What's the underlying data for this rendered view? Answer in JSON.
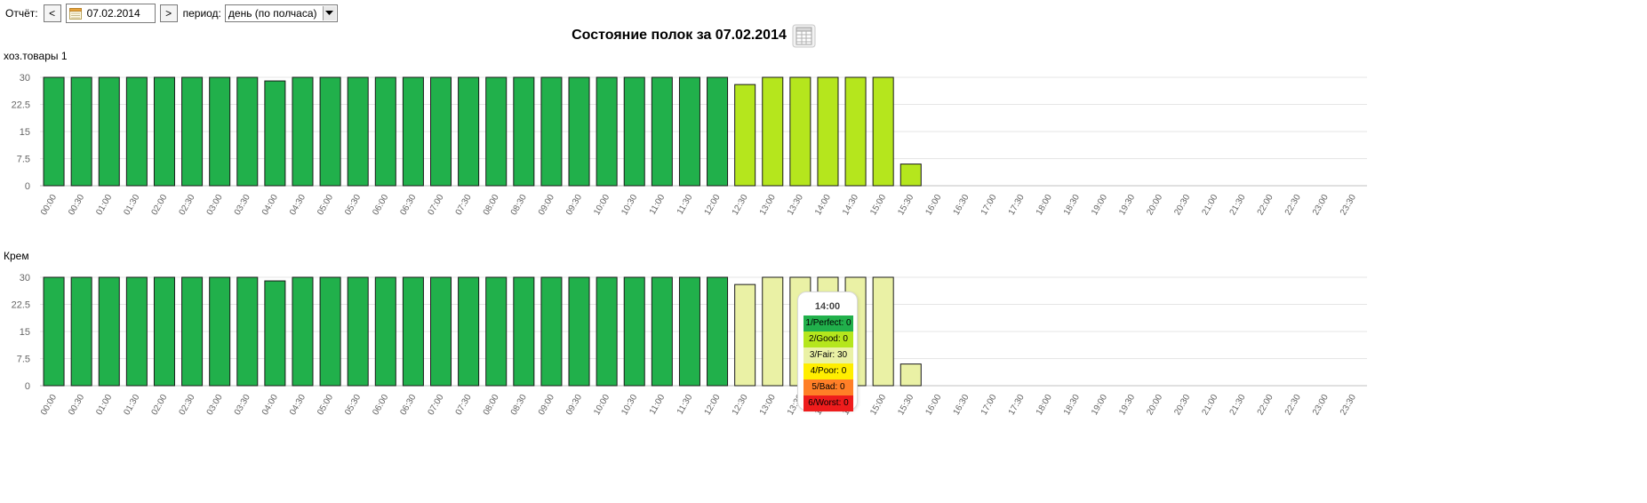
{
  "toolbar": {
    "report_label": "Отчёт:",
    "prev_label": "<",
    "date_value": "07.02.2014",
    "next_label": ">",
    "period_label": "период:",
    "period_selected": "день (по полчаса)",
    "icons": {
      "calendar": "calendar-icon",
      "dropdown": "chevron-down-icon"
    }
  },
  "report": {
    "title": "Состояние полок за 07.02.2014",
    "table_icon": "table-icon"
  },
  "colors": {
    "perfect": "#21b04b",
    "good": "#b5e61d",
    "fair": "#eaf1a5",
    "poor": "#ffee00",
    "bad": "#ff7f27",
    "worst": "#ee1c1c",
    "gridline": "#e6e6e6",
    "tick_text": "#666666"
  },
  "chart_data": [
    {
      "type": "bar",
      "title": "хоз.товары 1",
      "xlabel": "",
      "ylabel": "",
      "ylim": [
        0,
        30
      ],
      "yticks": [
        "0",
        "7.5",
        "15",
        "22.5",
        "30"
      ],
      "grid": true,
      "categories": [
        "00:00",
        "00:30",
        "01:00",
        "01:30",
        "02:00",
        "02:30",
        "03:00",
        "03:30",
        "04:00",
        "04:30",
        "05:00",
        "05:30",
        "06:00",
        "06:30",
        "07:00",
        "07:30",
        "08:00",
        "08:30",
        "09:00",
        "09:30",
        "10:00",
        "10:30",
        "11:00",
        "11:30",
        "12:00",
        "12:30",
        "13:00",
        "13:30",
        "14:00",
        "14:30",
        "15:00",
        "15:30",
        "16:00",
        "16:30",
        "17:00",
        "17:30",
        "18:00",
        "18:30",
        "19:00",
        "19:30",
        "20:00",
        "20:30",
        "21:00",
        "21:30",
        "22:00",
        "22:30",
        "23:00",
        "23:30"
      ],
      "values": [
        30,
        30,
        30,
        30,
        30,
        30,
        30,
        30,
        29,
        30,
        30,
        30,
        30,
        30,
        30,
        30,
        30,
        30,
        30,
        30,
        30,
        30,
        30,
        30,
        30,
        28,
        30,
        30,
        30,
        30,
        30,
        6,
        0,
        0,
        0,
        0,
        0,
        0,
        0,
        0,
        0,
        0,
        0,
        0,
        0,
        0,
        0,
        0
      ],
      "status": [
        "perfect",
        "perfect",
        "perfect",
        "perfect",
        "perfect",
        "perfect",
        "perfect",
        "perfect",
        "perfect",
        "perfect",
        "perfect",
        "perfect",
        "perfect",
        "perfect",
        "perfect",
        "perfect",
        "perfect",
        "perfect",
        "perfect",
        "perfect",
        "perfect",
        "perfect",
        "perfect",
        "perfect",
        "perfect",
        "good",
        "good",
        "good",
        "good",
        "good",
        "good",
        "good",
        null,
        null,
        null,
        null,
        null,
        null,
        null,
        null,
        null,
        null,
        null,
        null,
        null,
        null,
        null,
        null
      ]
    },
    {
      "type": "bar",
      "title": "Крем",
      "xlabel": "",
      "ylabel": "",
      "ylim": [
        0,
        30
      ],
      "yticks": [
        "0",
        "7.5",
        "15",
        "22.5",
        "30"
      ],
      "grid": true,
      "categories": [
        "00:00",
        "00:30",
        "01:00",
        "01:30",
        "02:00",
        "02:30",
        "03:00",
        "03:30",
        "04:00",
        "04:30",
        "05:00",
        "05:30",
        "06:00",
        "06:30",
        "07:00",
        "07:30",
        "08:00",
        "08:30",
        "09:00",
        "09:30",
        "10:00",
        "10:30",
        "11:00",
        "11:30",
        "12:00",
        "12:30",
        "13:00",
        "13:30",
        "14:00",
        "14:30",
        "15:00",
        "15:30",
        "16:00",
        "16:30",
        "17:00",
        "17:30",
        "18:00",
        "18:30",
        "19:00",
        "19:30",
        "20:00",
        "20:30",
        "21:00",
        "21:30",
        "22:00",
        "22:30",
        "23:00",
        "23:30"
      ],
      "values": [
        30,
        30,
        30,
        30,
        30,
        30,
        30,
        30,
        29,
        30,
        30,
        30,
        30,
        30,
        30,
        30,
        30,
        30,
        30,
        30,
        30,
        30,
        30,
        30,
        30,
        28,
        30,
        30,
        30,
        30,
        30,
        6,
        0,
        0,
        0,
        0,
        0,
        0,
        0,
        0,
        0,
        0,
        0,
        0,
        0,
        0,
        0,
        0
      ],
      "status": [
        "perfect",
        "perfect",
        "perfect",
        "perfect",
        "perfect",
        "perfect",
        "perfect",
        "perfect",
        "perfect",
        "perfect",
        "perfect",
        "perfect",
        "perfect",
        "perfect",
        "perfect",
        "perfect",
        "perfect",
        "perfect",
        "perfect",
        "perfect",
        "perfect",
        "perfect",
        "perfect",
        "perfect",
        "perfect",
        "fair",
        "fair",
        "fair",
        "fair",
        "fair",
        "fair",
        "fair",
        null,
        null,
        null,
        null,
        null,
        null,
        null,
        null,
        null,
        null,
        null,
        null,
        null,
        null,
        null,
        null
      ],
      "tooltip": {
        "title": "14:00",
        "rows": [
          {
            "label": "1/Perfect: 0",
            "status": "perfect"
          },
          {
            "label": "2/Good: 0",
            "status": "good"
          },
          {
            "label": "3/Fair: 30",
            "status": "fair"
          },
          {
            "label": "4/Poor: 0",
            "status": "poor"
          },
          {
            "label": "5/Bad: 0",
            "status": "bad"
          },
          {
            "label": "6/Worst: 0",
            "status": "worst"
          }
        ]
      }
    }
  ]
}
